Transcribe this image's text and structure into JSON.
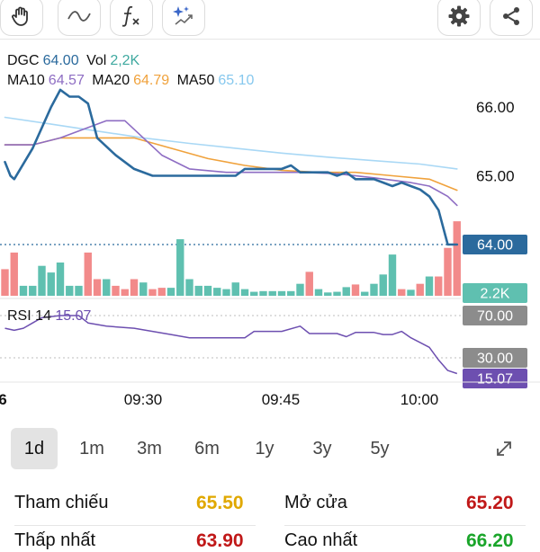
{
  "toolbar": {
    "left_tools": [
      "hand-tool",
      "line-tool",
      "function-tool",
      "sparkle-trend-tool"
    ],
    "right_tools": [
      "settings",
      "share"
    ]
  },
  "info": {
    "symbol": "DGC",
    "price": "64.00",
    "vol_label": "Vol",
    "vol": "2,2K",
    "ma10_label": "MA10",
    "ma10": "64.57",
    "ma20_label": "MA20",
    "ma20": "64.79",
    "ma50_label": "MA50",
    "ma50": "65.10"
  },
  "colors": {
    "price": "#2b6a9d",
    "ma10": "#8e6dc3",
    "ma20": "#f0a23c",
    "ma50": "#a9d8f5",
    "up": "#5fc0b0",
    "down": "#f28a8a",
    "rsi": "#6d4fb0",
    "grey_label": "#8c8c8c"
  },
  "price_axis": {
    "ticks": [
      "66.00",
      "65.00"
    ],
    "current": "64.00",
    "vol_current": "2.2K"
  },
  "rsi": {
    "label": "RSI 14",
    "value": "15.07",
    "upper": "70.00",
    "lower": "30.00"
  },
  "time_axis": {
    "left_cut": "6",
    "labels": [
      "09:30",
      "09:45",
      "10:00"
    ]
  },
  "chart_data": {
    "type": "line",
    "title": "DGC",
    "price_ylim": [
      64.0,
      66.5
    ],
    "price": [
      [
        0,
        65.2
      ],
      [
        0.6,
        65.0
      ],
      [
        1,
        64.95
      ],
      [
        3,
        65.4
      ],
      [
        5,
        66.0
      ],
      [
        6,
        66.25
      ],
      [
        7,
        66.15
      ],
      [
        8,
        66.15
      ],
      [
        9,
        66.05
      ],
      [
        10,
        65.55
      ],
      [
        12,
        65.3
      ],
      [
        14,
        65.1
      ],
      [
        16,
        65.0
      ],
      [
        18,
        65.0
      ],
      [
        22,
        65.0
      ],
      [
        25,
        65.0
      ],
      [
        26,
        65.1
      ],
      [
        30,
        65.1
      ],
      [
        31,
        65.15
      ],
      [
        32,
        65.05
      ],
      [
        35,
        65.05
      ],
      [
        36,
        65.0
      ],
      [
        37,
        65.05
      ],
      [
        38,
        64.95
      ],
      [
        40,
        64.95
      ],
      [
        41,
        64.9
      ],
      [
        42,
        64.85
      ],
      [
        43,
        64.9
      ],
      [
        44,
        64.85
      ],
      [
        45,
        64.8
      ],
      [
        46,
        64.7
      ],
      [
        47,
        64.5
      ],
      [
        48,
        64.0
      ],
      [
        49,
        64.0
      ]
    ],
    "ma10": [
      [
        0,
        65.45
      ],
      [
        3,
        65.45
      ],
      [
        6,
        65.55
      ],
      [
        9,
        65.7
      ],
      [
        11,
        65.8
      ],
      [
        13,
        65.8
      ],
      [
        15,
        65.55
      ],
      [
        17,
        65.3
      ],
      [
        20,
        65.1
      ],
      [
        24,
        65.05
      ],
      [
        28,
        65.05
      ],
      [
        32,
        65.05
      ],
      [
        36,
        65.03
      ],
      [
        40,
        64.97
      ],
      [
        44,
        64.9
      ],
      [
        46,
        64.85
      ],
      [
        48,
        64.7
      ],
      [
        49,
        64.57
      ]
    ],
    "ma20": [
      [
        0,
        65.45
      ],
      [
        3,
        65.45
      ],
      [
        6,
        65.55
      ],
      [
        10,
        65.55
      ],
      [
        14,
        65.55
      ],
      [
        18,
        65.4
      ],
      [
        22,
        65.25
      ],
      [
        26,
        65.15
      ],
      [
        30,
        65.08
      ],
      [
        34,
        65.05
      ],
      [
        38,
        65.05
      ],
      [
        42,
        65.0
      ],
      [
        46,
        64.95
      ],
      [
        49,
        64.79
      ]
    ],
    "ma50": [
      [
        0,
        65.85
      ],
      [
        5,
        65.75
      ],
      [
        10,
        65.65
      ],
      [
        15,
        65.55
      ],
      [
        20,
        65.47
      ],
      [
        25,
        65.4
      ],
      [
        30,
        65.33
      ],
      [
        35,
        65.27
      ],
      [
        40,
        65.22
      ],
      [
        45,
        65.17
      ],
      [
        49,
        65.1
      ]
    ],
    "volume": [
      [
        0,
        4,
        0
      ],
      [
        1,
        6.5,
        0
      ],
      [
        2,
        1.5,
        1
      ],
      [
        3,
        1.5,
        1
      ],
      [
        4,
        4.5,
        1
      ],
      [
        5,
        3.5,
        1
      ],
      [
        6,
        5,
        1
      ],
      [
        7,
        1.5,
        1
      ],
      [
        8,
        1.5,
        1
      ],
      [
        9,
        6.5,
        0
      ],
      [
        10,
        2.5,
        0
      ],
      [
        11,
        2.5,
        1
      ],
      [
        12,
        1.5,
        0
      ],
      [
        13,
        1,
        0
      ],
      [
        14,
        2.5,
        0
      ],
      [
        15,
        2,
        1
      ],
      [
        16,
        1,
        0
      ],
      [
        17,
        1.2,
        0
      ],
      [
        18,
        1.2,
        1
      ],
      [
        19,
        8.5,
        1
      ],
      [
        20,
        2.5,
        1
      ],
      [
        21,
        1.5,
        1
      ],
      [
        22,
        1.5,
        1
      ],
      [
        23,
        1.2,
        1
      ],
      [
        24,
        1,
        1
      ],
      [
        25,
        2,
        1
      ],
      [
        26,
        1,
        1
      ],
      [
        27,
        0.6,
        1
      ],
      [
        28,
        0.7,
        1
      ],
      [
        29,
        0.7,
        1
      ],
      [
        30,
        0.7,
        1
      ],
      [
        31,
        0.7,
        1
      ],
      [
        32,
        1.8,
        1
      ],
      [
        33,
        3.6,
        0
      ],
      [
        34,
        1,
        1
      ],
      [
        35,
        0.5,
        1
      ],
      [
        36,
        0.6,
        1
      ],
      [
        37,
        1.3,
        1
      ],
      [
        38,
        1.7,
        0
      ],
      [
        39,
        0.6,
        1
      ],
      [
        40,
        1.8,
        1
      ],
      [
        41,
        3.2,
        1
      ],
      [
        42,
        6.2,
        1
      ],
      [
        43,
        1,
        0
      ],
      [
        44,
        0.9,
        1
      ],
      [
        45,
        1.8,
        0
      ],
      [
        46,
        2.9,
        1
      ],
      [
        47,
        2.9,
        0
      ],
      [
        48,
        7.2,
        0
      ],
      [
        49,
        11.2,
        0
      ]
    ],
    "rsi": [
      [
        0,
        58
      ],
      [
        1,
        56
      ],
      [
        2,
        58
      ],
      [
        3,
        63
      ],
      [
        4,
        68
      ],
      [
        6,
        70
      ],
      [
        8,
        70
      ],
      [
        9,
        63
      ],
      [
        11,
        60
      ],
      [
        14,
        58
      ],
      [
        16,
        55
      ],
      [
        18,
        52
      ],
      [
        20,
        49
      ],
      [
        22,
        49
      ],
      [
        26,
        49
      ],
      [
        27,
        55
      ],
      [
        30,
        55
      ],
      [
        32,
        60
      ],
      [
        33,
        53
      ],
      [
        36,
        53
      ],
      [
        37,
        50
      ],
      [
        38,
        54
      ],
      [
        40,
        54
      ],
      [
        41,
        52
      ],
      [
        42,
        52
      ],
      [
        43,
        55
      ],
      [
        44,
        49
      ],
      [
        46,
        40
      ],
      [
        47,
        28
      ],
      [
        48,
        18
      ],
      [
        49,
        15.07
      ]
    ],
    "rsi_ylim": [
      0,
      75
    ]
  },
  "periods": [
    "1d",
    "1m",
    "3m",
    "6m",
    "1y",
    "3y",
    "5y"
  ],
  "selected_period": "1d",
  "stats": {
    "ref_label": "Tham chiếu",
    "ref_value": "65.50",
    "open_label": "Mở cửa",
    "open_value": "65.20",
    "low_label": "Thấp nhất",
    "low_value": "63.90",
    "high_label": "Cao nhất",
    "high_value": "66.20"
  }
}
